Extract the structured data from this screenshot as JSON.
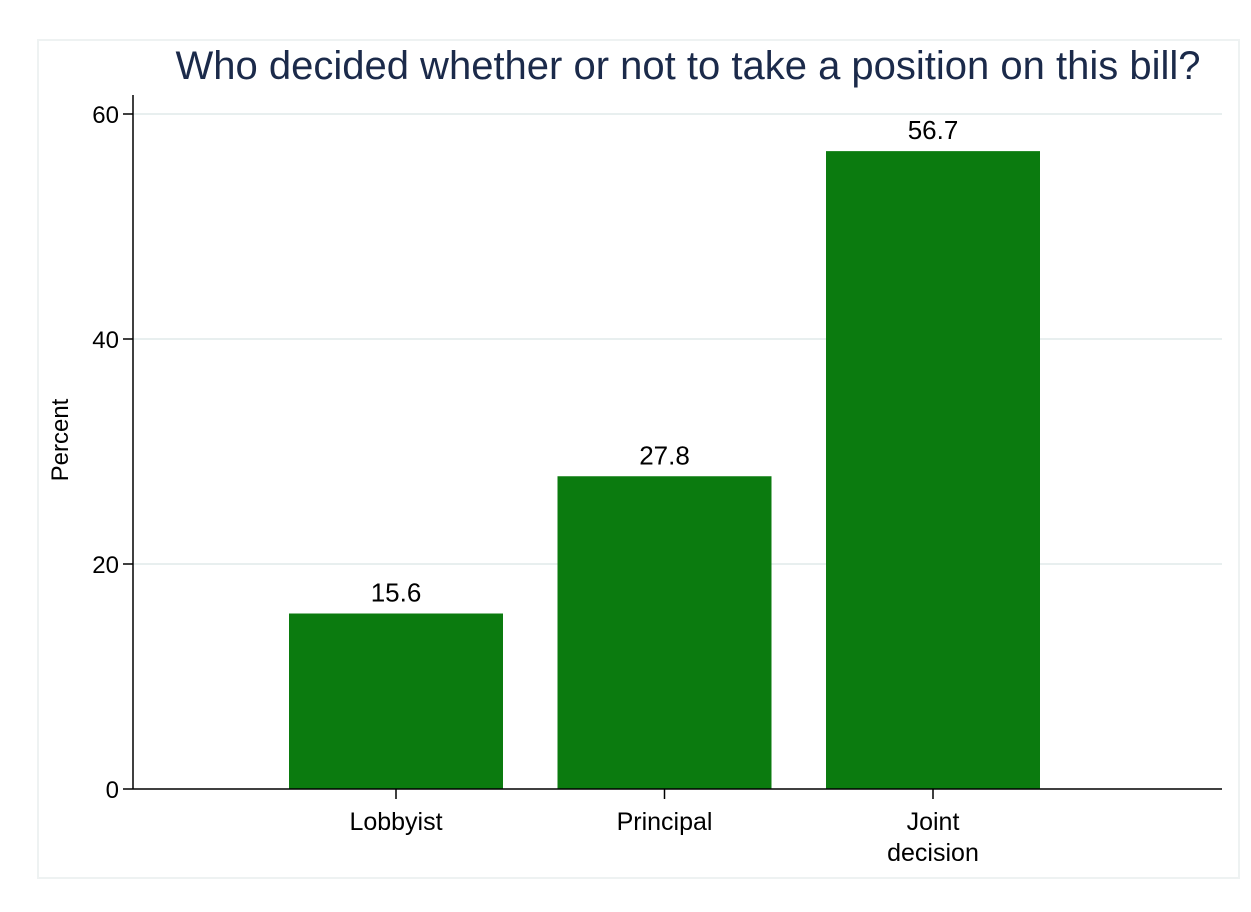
{
  "colors": {
    "bar": "#0b7b0f",
    "grid": "#e8efef",
    "axis": "#000000",
    "title": "#1b2a4a",
    "plot_border": "#eef2f2"
  },
  "chart_data": {
    "type": "bar",
    "title": "Who decided whether or not to take a position on this bill?",
    "ylabel": "Percent",
    "xlabel": "",
    "categories": [
      "Lobbyist",
      "Principal",
      "Joint decision"
    ],
    "category_lines": [
      [
        "Lobbyist"
      ],
      [
        "Principal"
      ],
      [
        "Joint",
        "decision"
      ]
    ],
    "values": [
      15.6,
      27.8,
      56.7
    ],
    "value_labels": [
      "15.6",
      "27.8",
      "56.7"
    ],
    "ylim": [
      0,
      60
    ],
    "yticks": [
      0,
      20,
      40,
      60
    ],
    "ytick_labels": [
      "0",
      "20",
      "40",
      "60"
    ],
    "grid": true,
    "legend": "none"
  }
}
